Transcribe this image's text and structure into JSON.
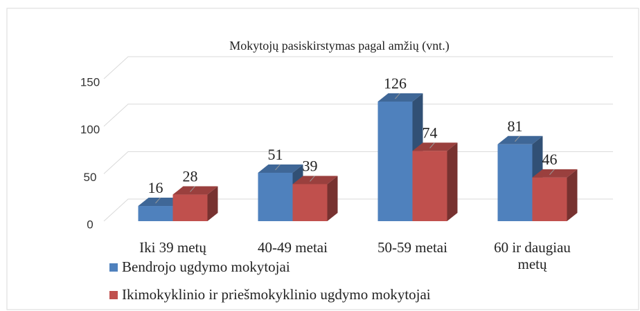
{
  "chart_data": {
    "type": "bar3d",
    "title": "Mokytojų pasiskirstymas pagal amžių (vnt.)",
    "categories": [
      "Iki 39 metų",
      "40-49 metai",
      "50-59 metai",
      "60 ir daugiau metų"
    ],
    "series": [
      {
        "name": "Bendrojo ugdymo mokytojai",
        "color": "#4f81bd",
        "values": [
          16,
          51,
          126,
          81
        ]
      },
      {
        "name": "Ikimokyklinio ir priešmokyklinio ugdymo mokytojai",
        "color": "#c0504d",
        "values": [
          28,
          39,
          74,
          46
        ]
      }
    ],
    "ylim": [
      0,
      150
    ],
    "yticks": [
      0,
      50,
      100,
      150
    ],
    "grid": true,
    "legend": "bottom-left"
  }
}
